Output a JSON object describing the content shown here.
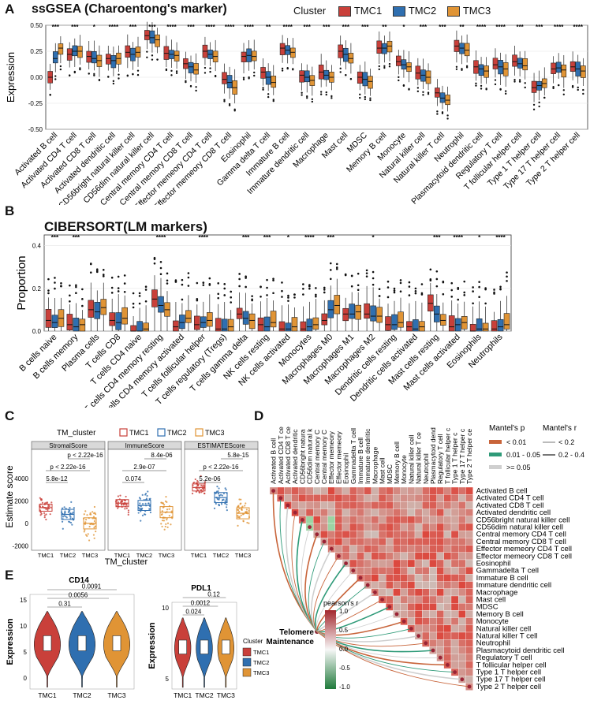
{
  "colors": {
    "TMC1": "#c9403a",
    "TMC2": "#2f6fb0",
    "TMC3": "#e09435"
  },
  "panelA": {
    "label": "A",
    "title": "ssGSEA (Charoentong's marker)",
    "legend_title": "Cluster",
    "legend": [
      "TMC1",
      "TMC2",
      "TMC3"
    ],
    "ylabel": "Expression",
    "yticks": [
      "0.50",
      "0.25",
      "0.00",
      "-0.25",
      "-0.50"
    ],
    "cells": [
      "Activated B cell",
      "Activated CD4 T cell",
      "Activated CD8 T cell",
      "Activated dendritic cell",
      "CD56bright natural killer cell",
      "CD56dim natural killer cell",
      "Central memory CD4 T cell",
      "Central memory CD8 T cell",
      "Effector memeory CD4 T cell",
      "Effector memeory CD8 T cell",
      "Eosinophil",
      "Gamma delta T cell",
      "Immature  B cell",
      "Immature dendritic cell",
      "Macrophage",
      "Mast cell",
      "MDSC",
      "Memory B cell",
      "Monocyte",
      "Natural killer cell",
      "Natural killer T cell",
      "Neutrophil",
      "Plasmacytoid dendritic cell",
      "Regulatory T cell",
      "T follicular helper cell",
      "Type 1 T helper cell",
      "Type 17 T helper cell",
      "Type 2 T helper cell"
    ],
    "sig": [
      "***",
      "***",
      "*",
      "****",
      "***",
      "***",
      "****",
      "***",
      "****",
      "****",
      "****",
      "**",
      "****",
      "***",
      "***",
      "***",
      "***",
      "**",
      "*",
      "***",
      "***",
      "**",
      "****",
      "****",
      "***",
      "***",
      "****",
      "****"
    ],
    "medians": [
      [
        0.0,
        0.18,
        0.28
      ],
      [
        0.22,
        0.25,
        0.25
      ],
      [
        0.2,
        0.18,
        0.16
      ],
      [
        0.18,
        0.16,
        0.18
      ],
      [
        0.24,
        0.22,
        0.24
      ],
      [
        0.4,
        0.38,
        0.36
      ],
      [
        0.23,
        0.22,
        0.21
      ],
      [
        0.13,
        0.1,
        0.07
      ],
      [
        0.25,
        0.22,
        0.2
      ],
      [
        -0.02,
        -0.05,
        -0.1
      ],
      [
        0.2,
        0.21,
        0.2
      ],
      [
        0.05,
        0.0,
        -0.05
      ],
      [
        0.28,
        0.26,
        0.24
      ],
      [
        0.02,
        0.0,
        -0.03
      ],
      [
        0.05,
        0.02,
        0.0
      ],
      [
        0.25,
        0.22,
        0.18
      ],
      [
        0.0,
        -0.02,
        -0.04
      ],
      [
        0.28,
        0.28,
        0.3
      ],
      [
        0.15,
        0.12,
        0.1
      ],
      [
        0.04,
        0.02,
        0.0
      ],
      [
        -0.15,
        -0.2,
        -0.22
      ],
      [
        0.3,
        0.28,
        0.26
      ],
      [
        0.1,
        0.08,
        0.06
      ],
      [
        0.12,
        0.1,
        0.08
      ],
      [
        0.15,
        0.13,
        0.11
      ],
      [
        -0.1,
        -0.08,
        -0.06
      ],
      [
        0.08,
        0.09,
        0.07
      ],
      [
        0.1,
        0.08,
        0.06
      ]
    ]
  },
  "panelB": {
    "label": "B",
    "title": "CIBERSORT(LM markers)",
    "ylabel": "Proportion",
    "yticks": [
      "0.4",
      "0.2",
      "0.0"
    ],
    "cells": [
      "B cells naive",
      "B cells memory",
      "Plasma cells",
      "T cells CD8",
      "T cells CD4 naive",
      "T cells CD4 memory resting",
      "T cells CD4 memory activated",
      "T cells follicular helper",
      "T cells regulatory (Tregs)",
      "T cells gamma delta",
      "NK cells resting",
      "NK cells activated",
      "Monocytes",
      "Macrophages M0",
      "Macrophages M1",
      "Macrophages M2",
      "Dendritic cells resting",
      "Dendritic cells activated",
      "Mast cells resting",
      "Mast cells activated",
      "Eosinophils",
      "Neutrophils"
    ],
    "sig": [
      "***",
      "***",
      "",
      "",
      "",
      "****",
      "",
      "****",
      "",
      "***",
      "***",
      "*",
      "****",
      "***",
      "",
      "*",
      "",
      "",
      "***",
      "****",
      "*",
      "****"
    ],
    "medians": [
      [
        0.05,
        0.04,
        0.06
      ],
      [
        0.03,
        0.02,
        0.03
      ],
      [
        0.1,
        0.09,
        0.11
      ],
      [
        0.05,
        0.04,
        0.06
      ],
      [
        0.0,
        0.0,
        0.01
      ],
      [
        0.15,
        0.12,
        0.1
      ],
      [
        0.02,
        0.04,
        0.06
      ],
      [
        0.03,
        0.04,
        0.05
      ],
      [
        0.01,
        0.01,
        0.02
      ],
      [
        0.08,
        0.06,
        0.05
      ],
      [
        0.03,
        0.02,
        0.04
      ],
      [
        0.01,
        0.01,
        0.02
      ],
      [
        0.01,
        0.02,
        0.03
      ],
      [
        0.05,
        0.1,
        0.12
      ],
      [
        0.08,
        0.08,
        0.09
      ],
      [
        0.08,
        0.07,
        0.07
      ],
      [
        0.03,
        0.03,
        0.04
      ],
      [
        0.02,
        0.01,
        0.02
      ],
      [
        0.13,
        0.08,
        0.05
      ],
      [
        0.02,
        0.03,
        0.04
      ],
      [
        0.0,
        0.01,
        0.01
      ],
      [
        0.01,
        0.02,
        0.03
      ]
    ]
  },
  "panelC": {
    "label": "C",
    "legend_title": "TM_cluster",
    "legend": [
      "TMC1",
      "TMC2",
      "TMC3"
    ],
    "ylabel": "Estimate score",
    "xlabel": "TM_cluster",
    "yticks": [
      "2000",
      "0",
      "-2000",
      "4000"
    ],
    "facets": [
      {
        "name": "StromalScore",
        "p_top": "p < 2.22e-16",
        "p_mid": "p < 2.22e-16",
        "p_low": "5.8e-12",
        "medians": [
          1400,
          800,
          0
        ]
      },
      {
        "name": "ImmuneScore",
        "p_top": "8.4e-06",
        "p_mid": "2.9e-07",
        "p_low": "0.074",
        "medians": [
          1800,
          1600,
          1000
        ]
      },
      {
        "name": "ESTIMATEScore",
        "p_top": "5.8e-15",
        "p_mid": "p < 2.22e-16",
        "p_low": "5.2e-06",
        "medians": [
          3200,
          2300,
          900
        ]
      }
    ],
    "xticks": [
      "TMC1",
      "TMC2",
      "TMC3"
    ]
  },
  "panelD": {
    "label": "D",
    "legend_p_title": "Mantel's p",
    "legend_r_title": "Mantel's r",
    "legend_p": [
      "< 0.01",
      "0.01 - 0.05",
      ">= 0.05"
    ],
    "legend_r": [
      "< 0.2",
      "0.2 - 0.4"
    ],
    "legend_pearson_title": "pearson's r",
    "pearson_ticks": [
      "1.0",
      "0.5",
      "0.0",
      "-0.5",
      "-1.0"
    ],
    "node_label": "Telomere Maintenance",
    "cells": [
      "Activated B cell",
      "Activated CD4 T cell",
      "Activated CD8 T cell",
      "Activated dendritic cell",
      "CD56bright natural killer cell",
      "CD56dim natural killer cell",
      "Central memory CD4 T cell",
      "Central memory CD8 T cell",
      "Effector memeory CD4 T cell",
      "Effector memeory CD8 T cell",
      "Eosinophil",
      "Gammadelta T cell",
      "Immature B cell",
      "Immature dendritic cell",
      "Macrophage",
      "Mast cell",
      "MDSC",
      "Memory B cell",
      "Monocyte",
      "Natural killer cell",
      "Natural killer T cell",
      "Neutrophil",
      "Plasmacytoid dendritic cell",
      "Regulatory T cell",
      "T follicular helper cell",
      "Type 1 T helper cell",
      "Type 17 T helper cell",
      "Type 2 T helper cell"
    ],
    "top_labels": [
      "Activated B cell",
      "Activated CD4 T ce",
      "Activated CD8 T ce",
      "Activated dendritic",
      "CD56bright natura",
      "CD56dim natural k",
      "Central memory C",
      "Central memory C",
      "Effector memeory",
      "Effector memeory",
      "Eosinophil",
      "Gammadelta T cell",
      "Immature B cell",
      "Immature dendritic",
      "Macrophage",
      "Mast cell",
      "MDSC",
      "Memory B cell",
      "Monocyte",
      "Natural killer cell",
      "Natural killer T ce",
      "Neutrophil",
      "Plasmacytoid dend",
      "Regulatory T cell",
      "T follicular helper c",
      "Type 1 T helper c",
      "Type 17 T helper c",
      "Type 2 T helper ce"
    ]
  },
  "panelE": {
    "label": "E",
    "ylabel": "Expression",
    "legend_title": "Cluster",
    "legend": [
      "TMC1",
      "TMC2",
      "TMC3"
    ],
    "plots": [
      {
        "title": "CD14",
        "p_values": [
          "0.0091",
          "0.0056",
          "0.31"
        ],
        "yticks": [
          "15",
          "10",
          "5",
          "0"
        ],
        "xticks": [
          "TMC1",
          "TMC2",
          "TMC3"
        ]
      },
      {
        "title": "PDL1",
        "p_values": [
          "0.12",
          "0.0012",
          "0.024"
        ],
        "yticks": [
          "10",
          "5"
        ],
        "xticks": [
          "TMC1",
          "TMC2",
          "TMC3"
        ]
      }
    ]
  }
}
